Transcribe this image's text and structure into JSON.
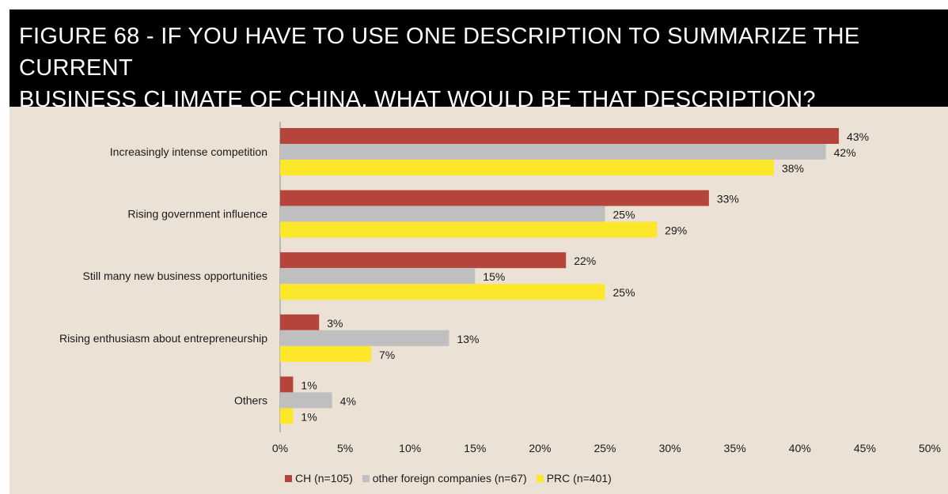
{
  "chart_data": {
    "type": "bar",
    "orientation": "horizontal",
    "title": "FIGURE 68 - IF YOU HAVE TO USE ONE DESCRIPTION TO SUMMARIZE THE CURRENT\nBUSINESS CLIMATE OF CHINA, WHAT WOULD BE THAT DESCRIPTION?",
    "categories": [
      "Increasingly intense competition",
      "Rising government influence",
      "Still many new business opportunities",
      "Rising enthusiasm about entrepreneurship",
      "Others"
    ],
    "series": [
      {
        "name": "CH (n=105)",
        "color": "#b5453b",
        "values": [
          43,
          33,
          22,
          3,
          1
        ],
        "labels": [
          "43%",
          "33%",
          "22%",
          "3%",
          "1%"
        ]
      },
      {
        "name": "other foreign companies (n=67)",
        "color": "#c0bfbf",
        "values": [
          42,
          25,
          15,
          13,
          4
        ],
        "labels": [
          "42%",
          "25%",
          "15%",
          "13%",
          "4%"
        ]
      },
      {
        "name": "PRC (n=401)",
        "color": "#fde72b",
        "values": [
          38,
          29,
          25,
          7,
          1
        ],
        "labels": [
          "38%",
          "29%",
          "25%",
          "7%",
          "1%"
        ]
      }
    ],
    "xlim": [
      0,
      50
    ],
    "xticks": [
      0,
      5,
      10,
      15,
      20,
      25,
      30,
      35,
      40,
      45,
      50
    ],
    "xtick_labels": [
      "0%",
      "5%",
      "10%",
      "15%",
      "20%",
      "25%",
      "30%",
      "35%",
      "40%",
      "45%",
      "50%"
    ],
    "grid": false,
    "legend_position": "bottom"
  }
}
